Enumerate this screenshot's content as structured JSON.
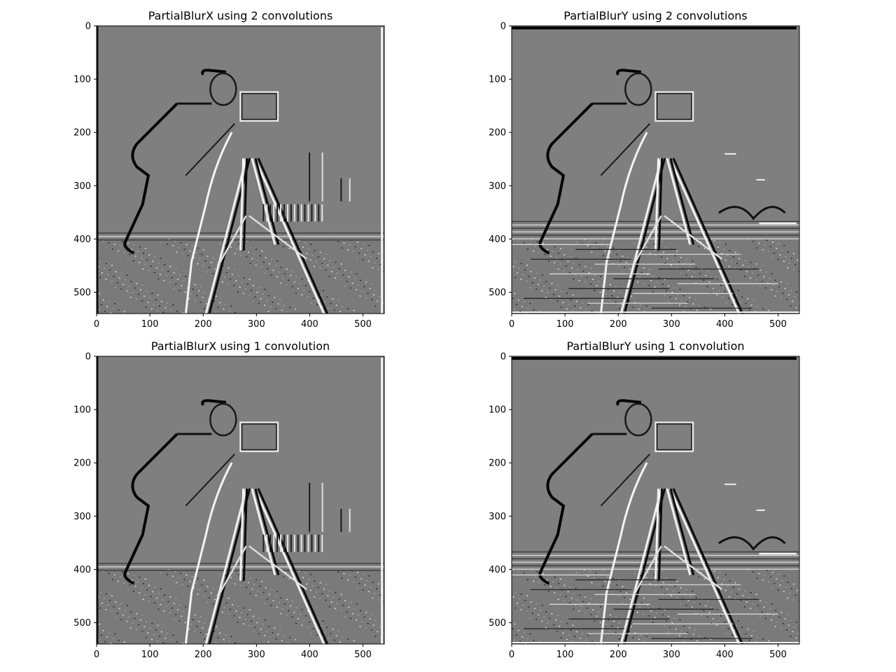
{
  "figure": {
    "background": "#ffffff",
    "image_gray": "#7f7f7f",
    "axis_color": "#000000"
  },
  "panels": [
    {
      "title": "PartialBlurX using 2 convolutions",
      "x_ticks": [
        "0",
        "100",
        "200",
        "300",
        "400",
        "500"
      ],
      "y_ticks": [
        "0",
        "100",
        "200",
        "300",
        "400",
        "500"
      ],
      "x_tick_values": [
        0,
        100,
        200,
        300,
        400,
        500
      ],
      "y_tick_values": [
        0,
        100,
        200,
        300,
        400,
        500
      ],
      "extent": [
        0,
        540
      ],
      "image_description": "cameraman-horizontal-gradient"
    },
    {
      "title": "PartialBlurY using 2 convolutions",
      "x_ticks": [
        "0",
        "100",
        "200",
        "300",
        "400",
        "500"
      ],
      "y_ticks": [
        "0",
        "100",
        "200",
        "300",
        "400",
        "500"
      ],
      "x_tick_values": [
        0,
        100,
        200,
        300,
        400,
        500
      ],
      "y_tick_values": [
        0,
        100,
        200,
        300,
        400,
        500
      ],
      "extent": [
        0,
        540
      ],
      "image_description": "cameraman-vertical-gradient"
    },
    {
      "title": "PartialBlurX using 1 convolution",
      "x_ticks": [
        "0",
        "100",
        "200",
        "300",
        "400",
        "500"
      ],
      "y_ticks": [
        "0",
        "100",
        "200",
        "300",
        "400",
        "500"
      ],
      "x_tick_values": [
        0,
        100,
        200,
        300,
        400,
        500
      ],
      "y_tick_values": [
        0,
        100,
        200,
        300,
        400,
        500
      ],
      "extent": [
        0,
        540
      ],
      "image_description": "cameraman-horizontal-gradient"
    },
    {
      "title": "PartialBlurY using 1 convolution",
      "x_ticks": [
        "0",
        "100",
        "200",
        "300",
        "400",
        "500"
      ],
      "y_ticks": [
        "0",
        "100",
        "200",
        "300",
        "400",
        "500"
      ],
      "x_tick_values": [
        0,
        100,
        200,
        300,
        400,
        500
      ],
      "y_tick_values": [
        0,
        100,
        200,
        300,
        400,
        500
      ],
      "extent": [
        0,
        540
      ],
      "image_description": "cameraman-vertical-gradient"
    }
  ]
}
